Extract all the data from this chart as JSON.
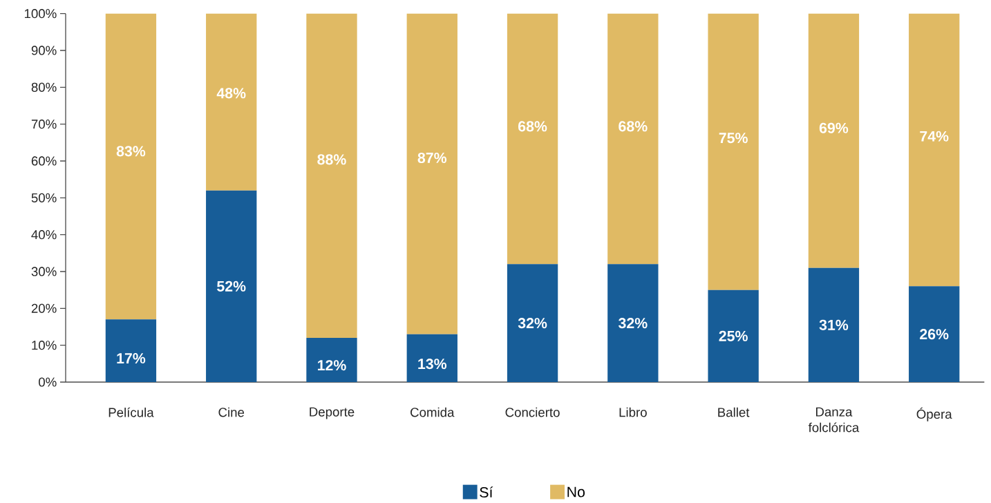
{
  "chart_data": {
    "type": "bar",
    "stacked": true,
    "categories": [
      "Película",
      "Cine",
      "Deporte",
      "Comida",
      "Concierto",
      "Libro",
      "Ballet",
      "Danza folclórica",
      "Ópera"
    ],
    "series": [
      {
        "name": "Sí",
        "color": "#175d98",
        "values": [
          17,
          52,
          12,
          13,
          32,
          32,
          25,
          31,
          26
        ],
        "value_labels": [
          "17%",
          "52%",
          "12%",
          "13%",
          "32%",
          "32%",
          "25%",
          "31%",
          "26%"
        ]
      },
      {
        "name": "No",
        "color": "#e0ba64",
        "values": [
          83,
          48,
          88,
          87,
          68,
          68,
          75,
          69,
          74
        ],
        "value_labels": [
          "83%",
          "48%",
          "88%",
          "87%",
          "68%",
          "68%",
          "75%",
          "69%",
          "74%"
        ]
      }
    ],
    "ylim": [
      0,
      100
    ],
    "yticks": [
      {
        "value": 0,
        "label": "0%"
      },
      {
        "value": 10,
        "label": "10%"
      },
      {
        "value": 20,
        "label": "20%"
      },
      {
        "value": 30,
        "label": "30%"
      },
      {
        "value": 40,
        "label": "40%"
      },
      {
        "value": 50,
        "label": "50%"
      },
      {
        "value": 60,
        "label": "60%"
      },
      {
        "value": 70,
        "label": "70%"
      },
      {
        "value": 80,
        "label": "80%"
      },
      {
        "value": 90,
        "label": "90%"
      },
      {
        "value": 100,
        "label": "100%"
      }
    ],
    "legend": "bottom",
    "grid": false
  }
}
